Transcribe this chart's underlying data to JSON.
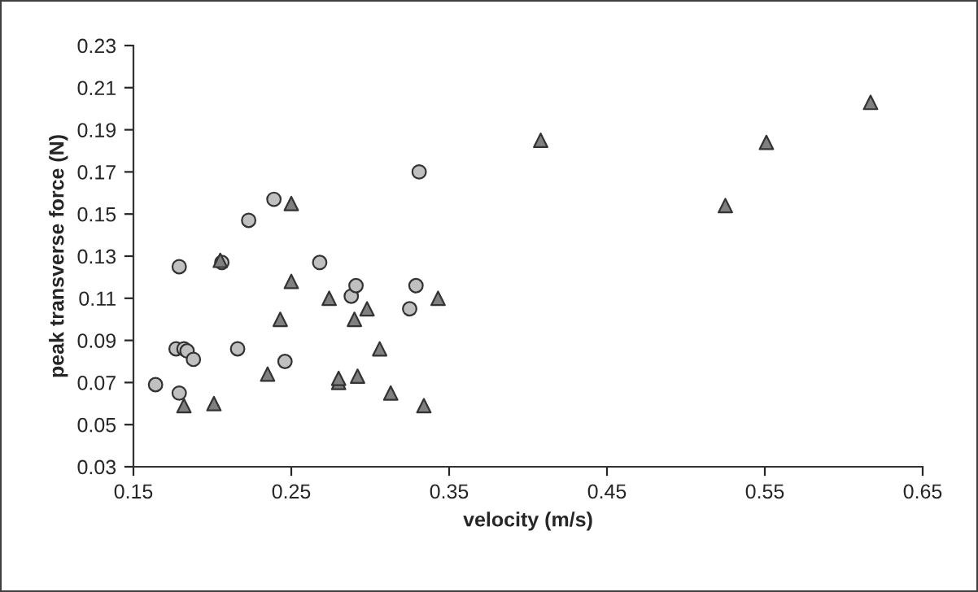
{
  "chart_data": {
    "type": "scatter",
    "xlabel": "velocity (m/s)",
    "ylabel": "peak transverse force (N)",
    "xlim": [
      0.15,
      0.65
    ],
    "xticks": [
      0.15,
      0.25,
      0.35,
      0.45,
      0.55,
      0.65
    ],
    "ylim": [
      0.03,
      0.23
    ],
    "yticks": [
      0.03,
      0.05,
      0.07,
      0.09,
      0.11,
      0.13,
      0.15,
      0.17,
      0.19,
      0.21,
      0.23
    ],
    "grid": false,
    "legend": false,
    "series": [
      {
        "color": "#c0c0c0",
        "marker": "circle",
        "x": [
          0.164,
          0.179,
          0.179,
          0.177,
          0.182,
          0.184,
          0.188,
          0.206,
          0.216,
          0.223,
          0.239,
          0.246,
          0.268,
          0.288,
          0.291,
          0.325,
          0.329,
          0.331
        ],
        "values": [
          0.069,
          0.065,
          0.125,
          0.086,
          0.086,
          0.085,
          0.081,
          0.127,
          0.086,
          0.147,
          0.157,
          0.08,
          0.127,
          0.111,
          0.116,
          0.105,
          0.116,
          0.17
        ]
      },
      {
        "color": "#808080",
        "marker": "triangle",
        "x": [
          0.182,
          0.201,
          0.205,
          0.235,
          0.243,
          0.25,
          0.25,
          0.274,
          0.28,
          0.28,
          0.29,
          0.292,
          0.298,
          0.306,
          0.313,
          0.334,
          0.343,
          0.408,
          0.525,
          0.551,
          0.617
        ],
        "values": [
          0.059,
          0.06,
          0.128,
          0.074,
          0.1,
          0.118,
          0.155,
          0.11,
          0.07,
          0.072,
          0.1,
          0.073,
          0.105,
          0.086,
          0.065,
          0.059,
          0.11,
          0.185,
          0.154,
          0.184,
          0.203
        ]
      }
    ]
  }
}
